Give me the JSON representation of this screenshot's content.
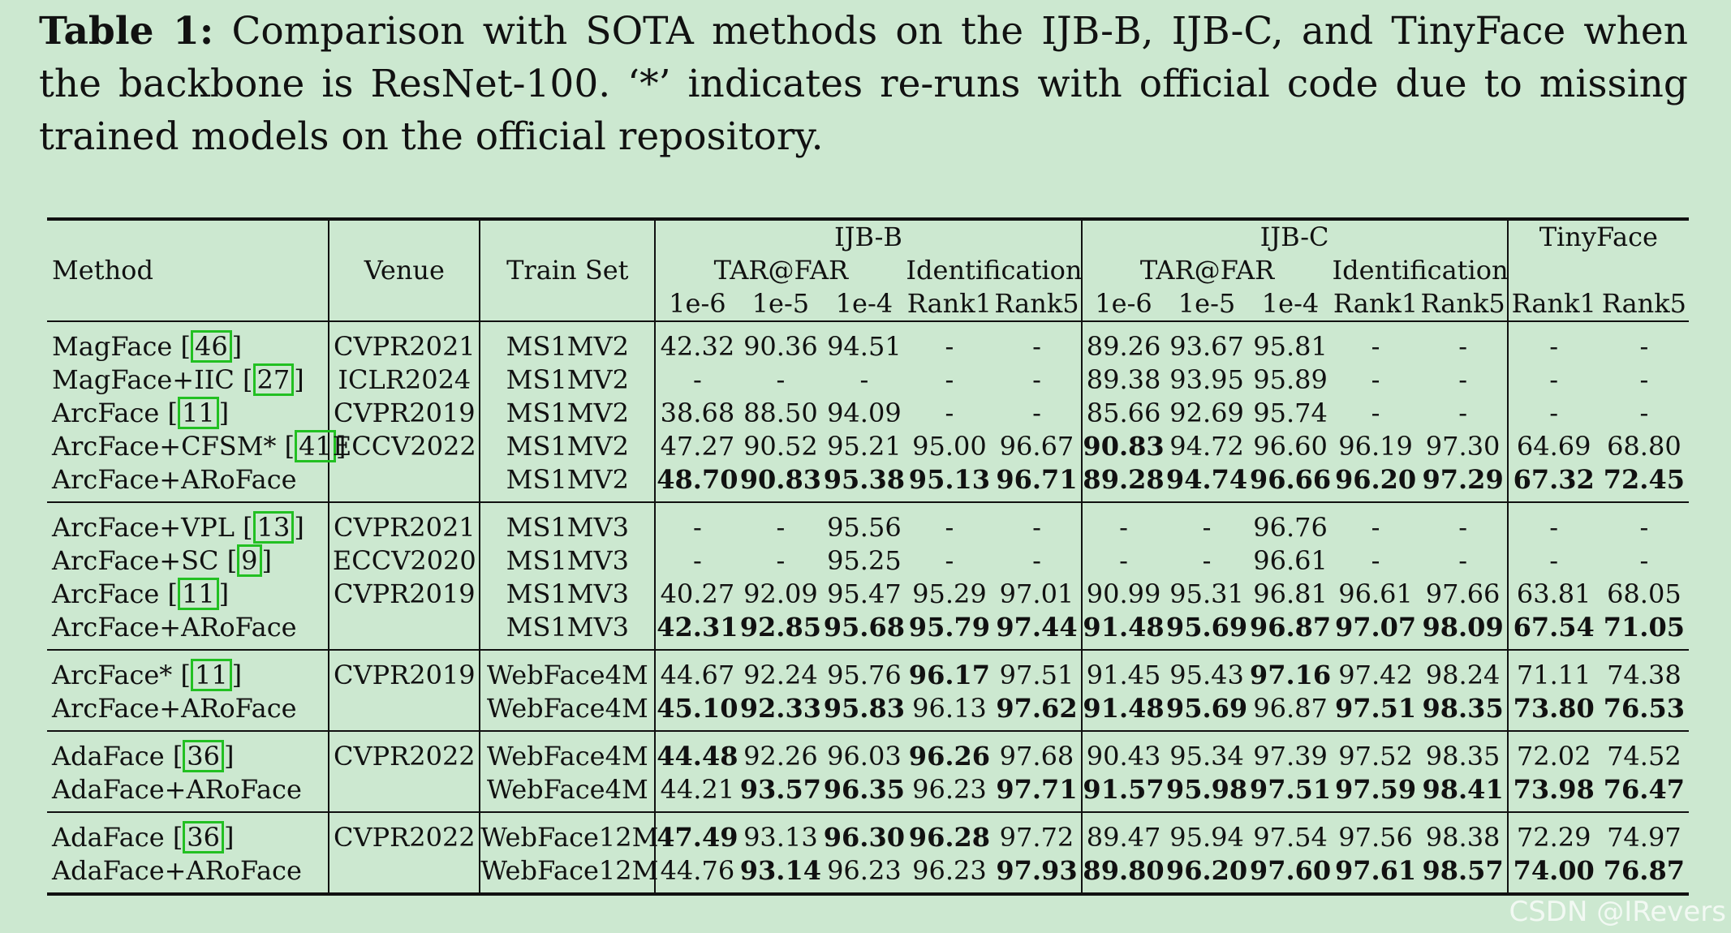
{
  "caption": {
    "label": "Table 1:",
    "text": "Comparison with SOTA methods on the IJB-B, IJB-C, and TinyFace when the backbone is ResNet-100. ‘*’ indicates re-runs with official code due to missing trained models on the official repository."
  },
  "header": {
    "method": "Method",
    "venue": "Venue",
    "train_set": "Train Set",
    "ijbb": "IJB-B",
    "ijbc": "IJB-C",
    "tinyface": "TinyFace",
    "tar_far": "TAR@FAR",
    "identification": "Identification",
    "cols": [
      "1e-6",
      "1e-5",
      "1e-4",
      "Rank1",
      "Rank5",
      "1e-6",
      "1e-5",
      "1e-4",
      "Rank1",
      "Rank5",
      "Rank1",
      "Rank5"
    ]
  },
  "groups": [
    {
      "rows": [
        {
          "method": "MagFace",
          "ref": "46",
          "venue": "CVPR2021",
          "train": "MS1MV2",
          "vals": [
            "42.32",
            "90.36",
            "94.51",
            "-",
            "-",
            "89.26",
            "93.67",
            "95.81",
            "-",
            "-",
            "-",
            "-"
          ],
          "bold": []
        },
        {
          "method": "MagFace+IIC",
          "ref": "27",
          "venue": "ICLR2024",
          "train": "MS1MV2",
          "vals": [
            "-",
            "-",
            "-",
            "-",
            "-",
            "89.38",
            "93.95",
            "95.89",
            "-",
            "-",
            "-",
            "-"
          ],
          "bold": []
        },
        {
          "method": "ArcFace",
          "ref": "11",
          "venue": "CVPR2019",
          "train": "MS1MV2",
          "vals": [
            "38.68",
            "88.50",
            "94.09",
            "-",
            "-",
            "85.66",
            "92.69",
            "95.74",
            "-",
            "-",
            "-",
            "-"
          ],
          "bold": []
        },
        {
          "method": "ArcFace+CFSM*",
          "ref": "41",
          "venue": "ECCV2022",
          "train": "MS1MV2",
          "vals": [
            "47.27",
            "90.52",
            "95.21",
            "95.00",
            "96.67",
            "90.83",
            "94.72",
            "96.60",
            "96.19",
            "97.30",
            "64.69",
            "68.80"
          ],
          "bold": [
            5
          ]
        },
        {
          "method": "ArcFace+ARoFace",
          "ref": "",
          "venue": "",
          "train": "MS1MV2",
          "vals": [
            "48.70",
            "90.83",
            "95.38",
            "95.13",
            "96.71",
            "89.28",
            "94.74",
            "96.66",
            "96.20",
            "97.29",
            "67.32",
            "72.45"
          ],
          "bold": [
            0,
            1,
            2,
            3,
            4,
            5,
            6,
            7,
            8,
            9,
            10,
            11
          ]
        }
      ]
    },
    {
      "rows": [
        {
          "method": "ArcFace+VPL",
          "ref": "13",
          "venue": "CVPR2021",
          "train": "MS1MV3",
          "vals": [
            "-",
            "-",
            "95.56",
            "-",
            "-",
            "-",
            "-",
            "96.76",
            "-",
            "-",
            "-",
            "-"
          ],
          "bold": []
        },
        {
          "method": "ArcFace+SC",
          "ref": "9",
          "venue": "ECCV2020",
          "train": "MS1MV3",
          "vals": [
            "-",
            "-",
            "95.25",
            "-",
            "-",
            "-",
            "-",
            "96.61",
            "-",
            "-",
            "-",
            "-"
          ],
          "bold": []
        },
        {
          "method": "ArcFace",
          "ref": "11",
          "venue": "CVPR2019",
          "train": "MS1MV3",
          "vals": [
            "40.27",
            "92.09",
            "95.47",
            "95.29",
            "97.01",
            "90.99",
            "95.31",
            "96.81",
            "96.61",
            "97.66",
            "63.81",
            "68.05"
          ],
          "bold": []
        },
        {
          "method": "ArcFace+ARoFace",
          "ref": "",
          "venue": "",
          "train": "MS1MV3",
          "vals": [
            "42.31",
            "92.85",
            "95.68",
            "95.79",
            "97.44",
            "91.48",
            "95.69",
            "96.87",
            "97.07",
            "98.09",
            "67.54",
            "71.05"
          ],
          "bold": [
            0,
            1,
            2,
            3,
            4,
            5,
            6,
            7,
            8,
            9,
            10,
            11
          ]
        }
      ]
    },
    {
      "rows": [
        {
          "method": "ArcFace*",
          "ref": "11",
          "venue": "CVPR2019",
          "train": "WebFace4M",
          "vals": [
            "44.67",
            "92.24",
            "95.76",
            "96.17",
            "97.51",
            "91.45",
            "95.43",
            "97.16",
            "97.42",
            "98.24",
            "71.11",
            "74.38"
          ],
          "bold": [
            3,
            7
          ]
        },
        {
          "method": "ArcFace+ARoFace",
          "ref": "",
          "venue": "",
          "train": "WebFace4M",
          "vals": [
            "45.10",
            "92.33",
            "95.83",
            "96.13",
            "97.62",
            "91.48",
            "95.69",
            "96.87",
            "97.51",
            "98.35",
            "73.80",
            "76.53"
          ],
          "bold": [
            0,
            1,
            2,
            4,
            5,
            6,
            8,
            9,
            10,
            11
          ]
        }
      ]
    },
    {
      "rows": [
        {
          "method": "AdaFace",
          "ref": "36",
          "venue": "CVPR2022",
          "train": "WebFace4M",
          "vals": [
            "44.48",
            "92.26",
            "96.03",
            "96.26",
            "97.68",
            "90.43",
            "95.34",
            "97.39",
            "97.52",
            "98.35",
            "72.02",
            "74.52"
          ],
          "bold": [
            0,
            3
          ]
        },
        {
          "method": "AdaFace+ARoFace",
          "ref": "",
          "venue": "",
          "train": "WebFace4M",
          "vals": [
            "44.21",
            "93.57",
            "96.35",
            "96.23",
            "97.71",
            "91.57",
            "95.98",
            "97.51",
            "97.59",
            "98.41",
            "73.98",
            "76.47"
          ],
          "bold": [
            1,
            2,
            4,
            5,
            6,
            7,
            8,
            9,
            10,
            11
          ]
        }
      ]
    },
    {
      "rows": [
        {
          "method": "AdaFace",
          "ref": "36",
          "venue": "CVPR2022",
          "train": "WebFace12M",
          "vals": [
            "47.49",
            "93.13",
            "96.30",
            "96.28",
            "97.72",
            "89.47",
            "95.94",
            "97.54",
            "97.56",
            "98.38",
            "72.29",
            "74.97"
          ],
          "bold": [
            0,
            2,
            3
          ]
        },
        {
          "method": "AdaFace+ARoFace",
          "ref": "",
          "venue": "",
          "train": "WebFace12M",
          "vals": [
            "44.76",
            "93.14",
            "96.23",
            "96.23",
            "97.93",
            "89.80",
            "96.20",
            "97.60",
            "97.61",
            "98.57",
            "74.00",
            "76.87"
          ],
          "bold": [
            1,
            4,
            5,
            6,
            7,
            8,
            9,
            10,
            11
          ]
        }
      ]
    }
  ],
  "watermark": "CSDN @IRevers"
}
